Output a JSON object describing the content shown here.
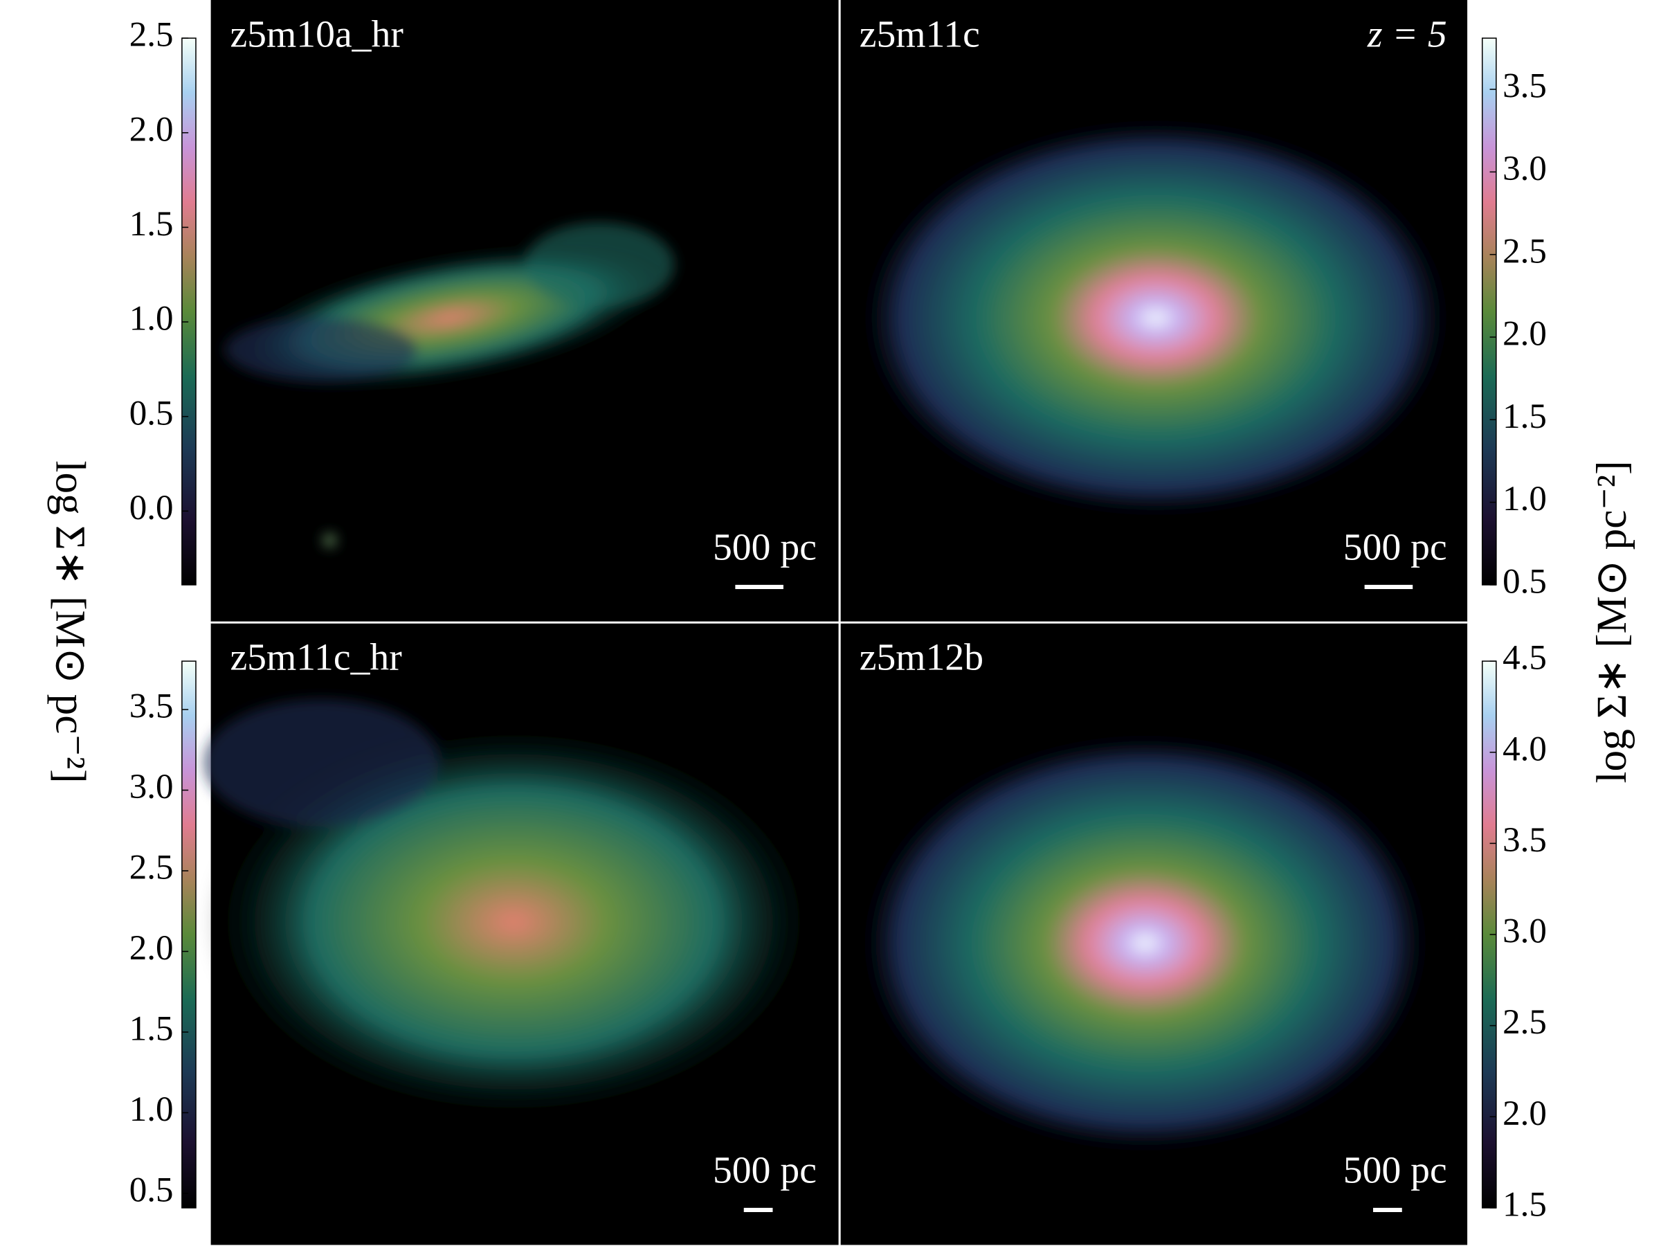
{
  "panels": [
    {
      "label": "z5m10a_hr",
      "scale_label": "500 pc"
    },
    {
      "label": "z5m11c",
      "scale_label": "500 pc"
    },
    {
      "label": "z5m11c_hr",
      "scale_label": "500 pc"
    },
    {
      "label": "z5m12b",
      "scale_label": "500 pc"
    }
  ],
  "redshift_label": "z = 5",
  "left_axis_label": "log Σ∗ [M⊙ pc⁻²]",
  "right_axis_label": "log Σ∗ [M⊙ pc⁻²]",
  "colorbars": [
    {
      "lim": [
        -0.39,
        2.5
      ],
      "ticks": [
        {
          "value": 0,
          "label": "0.0"
        },
        {
          "value": 0.5,
          "label": "0.5"
        },
        {
          "value": 1,
          "label": "1.0"
        },
        {
          "value": 1.5,
          "label": "1.5"
        },
        {
          "value": 2,
          "label": "2.0"
        },
        {
          "value": 2.5,
          "label": "2.5"
        }
      ]
    },
    {
      "lim": [
        0.5,
        3.81
      ],
      "ticks": [
        {
          "value": 0.5,
          "label": "0.5"
        },
        {
          "value": 1,
          "label": "1.0"
        },
        {
          "value": 1.5,
          "label": "1.5"
        },
        {
          "value": 2,
          "label": "2.0"
        },
        {
          "value": 2.5,
          "label": "2.5"
        },
        {
          "value": 3,
          "label": "3.0"
        },
        {
          "value": 3.5,
          "label": "3.5"
        }
      ]
    },
    {
      "lim": [
        0.41,
        3.8
      ],
      "ticks": [
        {
          "value": 0.5,
          "label": "0.5"
        },
        {
          "value": 1,
          "label": "1.0"
        },
        {
          "value": 1.5,
          "label": "1.5"
        },
        {
          "value": 2,
          "label": "2.0"
        },
        {
          "value": 2.5,
          "label": "2.5"
        },
        {
          "value": 3,
          "label": "3.0"
        },
        {
          "value": 3.5,
          "label": "3.5"
        }
      ]
    },
    {
      "lim": [
        1.5,
        4.5
      ],
      "ticks": [
        {
          "value": 1.5,
          "label": "1.5"
        },
        {
          "value": 2,
          "label": "2.0"
        },
        {
          "value": 2.5,
          "label": "2.5"
        },
        {
          "value": 3,
          "label": "3.0"
        },
        {
          "value": 3.5,
          "label": "3.5"
        },
        {
          "value": 4,
          "label": "4.0"
        },
        {
          "value": 4.5,
          "label": "4.5"
        }
      ]
    }
  ]
}
